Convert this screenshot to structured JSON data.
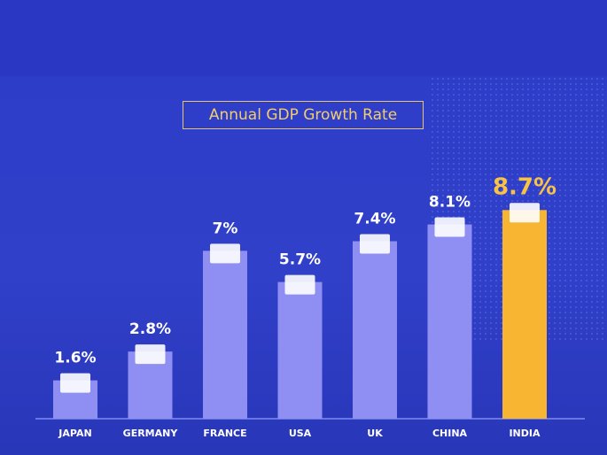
{
  "chart_data": {
    "type": "bar",
    "title": "Annual GDP Growth Rate",
    "categories": [
      "JAPAN",
      "GERMANY",
      "FRANCE",
      "USA",
      "UK",
      "CHINA",
      "INDIA"
    ],
    "values": [
      1.6,
      2.8,
      7.0,
      5.7,
      7.4,
      8.1,
      8.7
    ],
    "value_labels": [
      "1.6%",
      "2.8%",
      "7%",
      "5.7%",
      "7.4%",
      "8.1%",
      "8.7%"
    ],
    "highlight": "INDIA",
    "xlabel": "",
    "ylabel": "",
    "ylim": [
      0,
      10
    ],
    "grid": false,
    "legend": "none"
  },
  "colors": {
    "bar": "#8f8ef2",
    "highlight_bar": "#f7b531",
    "title": "#f2cd6e",
    "background": "#2f3ec8"
  }
}
